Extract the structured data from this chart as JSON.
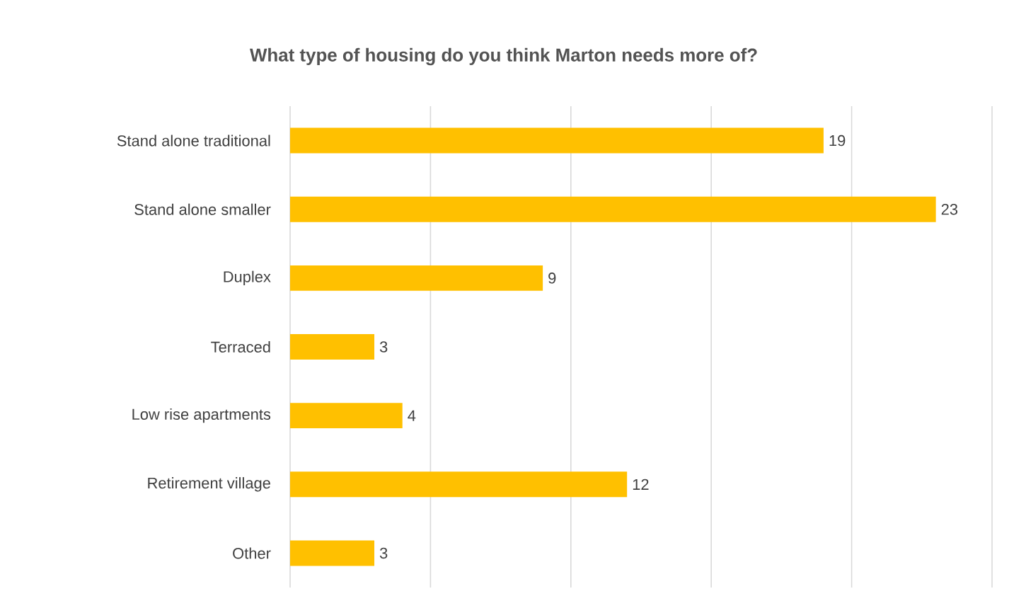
{
  "chart_data": {
    "type": "bar",
    "orientation": "horizontal",
    "title": "What type of housing do you think Marton needs more of?",
    "categories": [
      "Stand alone traditional",
      "Stand alone smaller",
      "Duplex",
      "Terraced",
      "Low rise apartments",
      "Retirement village",
      "Other"
    ],
    "values": [
      19,
      23,
      9,
      3,
      4,
      12,
      3
    ],
    "color": "#ffc000",
    "data_labels": true,
    "grid": "x",
    "tick_labels": "y",
    "xlim": [
      0,
      25
    ],
    "xticks": [
      {
        "value": 0,
        "label": null
      },
      {
        "value": 5,
        "label": null
      },
      {
        "value": 10,
        "label": null
      },
      {
        "value": 15,
        "label": null
      },
      {
        "value": 20,
        "label": null
      },
      {
        "value": 25,
        "label": null
      }
    ]
  }
}
